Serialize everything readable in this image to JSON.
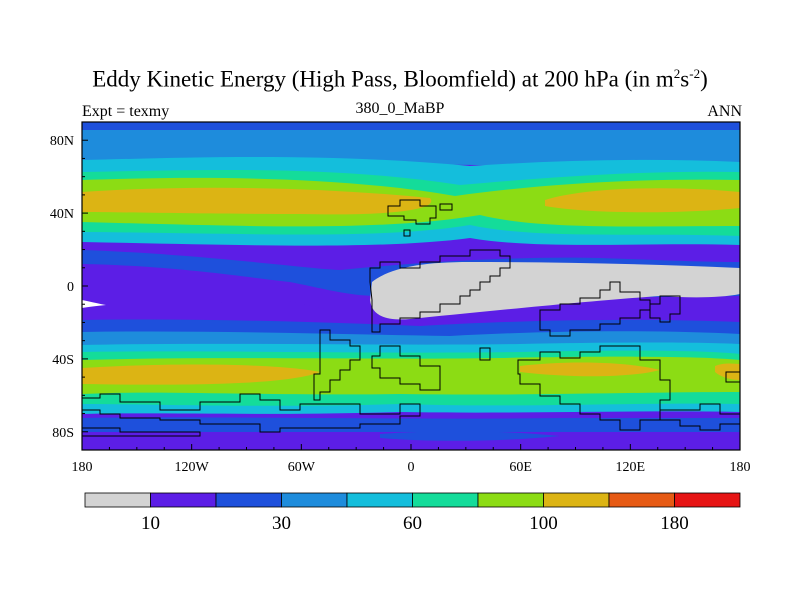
{
  "title": {
    "main": "Eddy Kinetic Energy (High Pass, Bloomfield) at 200 hPa (in m",
    "sup1": "2",
    "mid": "s",
    "sup2": "-2",
    "end": ")"
  },
  "subtitle_left": "Expt = texmy",
  "subtitle_center": "380_0_MaBP",
  "subtitle_right": "ANN",
  "map": {
    "lon_range": [
      -180,
      180
    ],
    "lat_range": [
      -90,
      90
    ],
    "x_ticks": [
      {
        "value": -180,
        "label": "180"
      },
      {
        "value": -120,
        "label": "120W"
      },
      {
        "value": -60,
        "label": "60W"
      },
      {
        "value": 0,
        "label": "0"
      },
      {
        "value": 60,
        "label": "60E"
      },
      {
        "value": 120,
        "label": "120E"
      },
      {
        "value": 180,
        "label": "180"
      }
    ],
    "y_ticks": [
      {
        "value": 80,
        "label": "80N"
      },
      {
        "value": 40,
        "label": "40N"
      },
      {
        "value": 0,
        "label": "0"
      },
      {
        "value": -40,
        "label": "40S"
      },
      {
        "value": -80,
        "label": "80S"
      }
    ],
    "levels": [
      10,
      20,
      30,
      45,
      60,
      80,
      100,
      140,
      180
    ],
    "colors": [
      "#d3d3d3",
      "#5c1ee6",
      "#1e50dc",
      "#1e8cdc",
      "#14bedc",
      "#14dc9a",
      "#8cdc14",
      "#dcb414",
      "#e65a14",
      "#e61414"
    ]
  },
  "colorbar": {
    "labels": [
      {
        "index": 1,
        "text": "10"
      },
      {
        "index": 3,
        "text": "30"
      },
      {
        "index": 5,
        "text": "60"
      },
      {
        "index": 7,
        "text": "100"
      },
      {
        "index": 9,
        "text": "180"
      }
    ]
  }
}
